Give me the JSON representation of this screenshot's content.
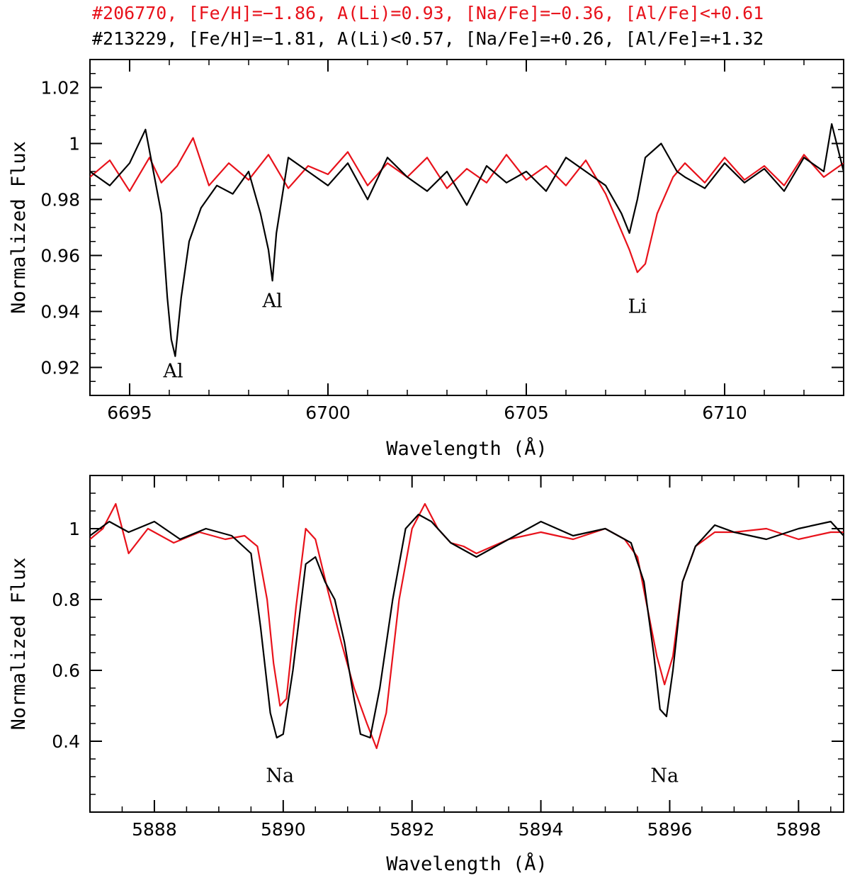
{
  "legend": {
    "red_label": "#206770, [Fe/H]=−1.86, A(Li)=0.93, [Na/Fe]=−0.36, [Al/Fe]<+0.61",
    "black_label": "#213229, [Fe/H]=−1.81, A(Li)<0.57, [Na/Fe]=+0.26, [Al/Fe]=+1.32"
  },
  "colors": {
    "red_star": "#e8121b",
    "black_star": "#000000"
  },
  "chart_data": [
    {
      "type": "line",
      "xlabel": "Wavelength (Å)",
      "ylabel": "Normalized Flux",
      "xlim": [
        6694,
        6713
      ],
      "ylim": [
        0.91,
        1.03
      ],
      "xticks": [
        6695,
        6700,
        6705,
        6710
      ],
      "xtick_labels": [
        "6695",
        "6700",
        "6705",
        "6710"
      ],
      "yticks": [
        0.92,
        0.94,
        0.96,
        0.98,
        1.0,
        1.02
      ],
      "ytick_labels": [
        "0.92",
        "0.94",
        "0.96",
        "0.98",
        "1",
        "1.02"
      ],
      "annotations": [
        {
          "text": "Al",
          "x": 6696.1,
          "y": 0.9165
        },
        {
          "text": "Al",
          "x": 6698.6,
          "y": 0.9415
        },
        {
          "text": "Li",
          "x": 6707.8,
          "y": 0.9395
        }
      ],
      "series": [
        {
          "name": "#206770",
          "color": "red",
          "x": [
            6694.0,
            6694.5,
            6695.0,
            6695.5,
            6695.8,
            6696.2,
            6696.6,
            6697.0,
            6697.5,
            6698.0,
            6698.5,
            6699.0,
            6699.5,
            6700.0,
            6700.5,
            6701.0,
            6701.5,
            6702.0,
            6702.5,
            6703.0,
            6703.5,
            6704.0,
            6704.5,
            6705.0,
            6705.5,
            6706.0,
            6706.5,
            6707.0,
            6707.3,
            6707.6,
            6707.8,
            6708.0,
            6708.3,
            6708.7,
            6709.0,
            6709.5,
            6710.0,
            6710.5,
            6711.0,
            6711.5,
            6712.0,
            6712.5,
            6713.0
          ],
          "values": [
            0.988,
            0.994,
            0.983,
            0.995,
            0.986,
            0.992,
            1.002,
            0.985,
            0.993,
            0.987,
            0.996,
            0.984,
            0.992,
            0.989,
            0.997,
            0.985,
            0.993,
            0.988,
            0.995,
            0.984,
            0.991,
            0.986,
            0.996,
            0.987,
            0.992,
            0.985,
            0.994,
            0.982,
            0.972,
            0.962,
            0.954,
            0.957,
            0.975,
            0.988,
            0.993,
            0.986,
            0.995,
            0.987,
            0.992,
            0.985,
            0.996,
            0.988,
            0.993
          ]
        },
        {
          "name": "#213229",
          "color": "black",
          "x": [
            6694.0,
            6694.5,
            6695.0,
            6695.4,
            6695.6,
            6695.8,
            6695.95,
            6696.05,
            6696.15,
            6696.3,
            6696.5,
            6696.8,
            6697.2,
            6697.6,
            6698.0,
            6698.3,
            6698.5,
            6698.6,
            6698.7,
            6699.0,
            6699.5,
            6700.0,
            6700.5,
            6701.0,
            6701.5,
            6702.0,
            6702.5,
            6703.0,
            6703.5,
            6704.0,
            6704.5,
            6705.0,
            6705.5,
            6706.0,
            6706.5,
            6707.0,
            6707.4,
            6707.6,
            6707.8,
            6708.0,
            6708.4,
            6708.8,
            6709.0,
            6709.5,
            6710.0,
            6710.5,
            6711.0,
            6711.5,
            6712.0,
            6712.5,
            6712.7,
            6713.0
          ],
          "values": [
            0.99,
            0.985,
            0.993,
            1.005,
            0.99,
            0.975,
            0.945,
            0.93,
            0.924,
            0.945,
            0.965,
            0.977,
            0.985,
            0.982,
            0.99,
            0.975,
            0.962,
            0.951,
            0.968,
            0.995,
            0.99,
            0.985,
            0.993,
            0.98,
            0.995,
            0.988,
            0.983,
            0.99,
            0.978,
            0.992,
            0.986,
            0.99,
            0.983,
            0.995,
            0.99,
            0.985,
            0.975,
            0.968,
            0.98,
            0.995,
            1.0,
            0.99,
            0.988,
            0.984,
            0.993,
            0.986,
            0.991,
            0.983,
            0.995,
            0.99,
            1.007,
            0.99
          ]
        }
      ]
    },
    {
      "type": "line",
      "xlabel": "Wavelength (Å)",
      "ylabel": "Normalized Flux",
      "xlim": [
        5887,
        5898.7
      ],
      "ylim": [
        0.2,
        1.15
      ],
      "xticks": [
        5888,
        5890,
        5892,
        5894,
        5896,
        5898
      ],
      "xtick_labels": [
        "5888",
        "5890",
        "5892",
        "5894",
        "5896",
        "5898"
      ],
      "yticks": [
        0.4,
        0.6,
        0.8,
        1.0
      ],
      "ytick_labels": [
        "0.4",
        "0.6",
        "0.8",
        "1"
      ],
      "annotations": [
        {
          "text": "Na",
          "x": 5889.95,
          "y": 0.285
        },
        {
          "text": "Na",
          "x": 5895.92,
          "y": 0.285
        }
      ],
      "series": [
        {
          "name": "#206770",
          "color": "red",
          "x": [
            5887.0,
            5887.2,
            5887.4,
            5887.6,
            5887.9,
            5888.3,
            5888.7,
            5889.1,
            5889.4,
            5889.6,
            5889.75,
            5889.85,
            5889.95,
            5890.05,
            5890.2,
            5890.35,
            5890.5,
            5890.7,
            5890.9,
            5891.1,
            5891.3,
            5891.45,
            5891.6,
            5891.8,
            5892.0,
            5892.2,
            5892.4,
            5892.6,
            5892.8,
            5893.0,
            5893.5,
            5894.0,
            5894.5,
            5895.0,
            5895.3,
            5895.5,
            5895.65,
            5895.8,
            5895.92,
            5896.05,
            5896.2,
            5896.4,
            5896.7,
            5897.0,
            5897.5,
            5898.0,
            5898.5,
            5898.7
          ],
          "values": [
            0.97,
            1.0,
            1.07,
            0.93,
            1.0,
            0.96,
            0.99,
            0.97,
            0.98,
            0.95,
            0.8,
            0.62,
            0.5,
            0.52,
            0.78,
            1.0,
            0.97,
            0.82,
            0.68,
            0.55,
            0.45,
            0.38,
            0.48,
            0.8,
            1.0,
            1.07,
            1.0,
            0.96,
            0.95,
            0.93,
            0.97,
            0.99,
            0.97,
            1.0,
            0.97,
            0.92,
            0.78,
            0.64,
            0.56,
            0.64,
            0.85,
            0.95,
            0.99,
            0.99,
            1.0,
            0.97,
            0.99,
            0.99
          ]
        },
        {
          "name": "#213229",
          "color": "black",
          "x": [
            5887.0,
            5887.3,
            5887.6,
            5888.0,
            5888.4,
            5888.8,
            5889.2,
            5889.5,
            5889.65,
            5889.8,
            5889.9,
            5890.0,
            5890.15,
            5890.35,
            5890.5,
            5890.65,
            5890.8,
            5890.95,
            5891.1,
            5891.2,
            5891.35,
            5891.5,
            5891.7,
            5891.9,
            5892.1,
            5892.3,
            5892.6,
            5893.0,
            5893.5,
            5894.0,
            5894.5,
            5895.0,
            5895.4,
            5895.6,
            5895.75,
            5895.85,
            5895.95,
            5896.05,
            5896.2,
            5896.4,
            5896.7,
            5897.0,
            5897.5,
            5898.0,
            5898.5,
            5898.7
          ],
          "values": [
            0.98,
            1.02,
            0.99,
            1.02,
            0.97,
            1.0,
            0.98,
            0.93,
            0.72,
            0.48,
            0.41,
            0.42,
            0.6,
            0.9,
            0.92,
            0.85,
            0.8,
            0.68,
            0.52,
            0.42,
            0.41,
            0.55,
            0.8,
            1.0,
            1.04,
            1.02,
            0.96,
            0.92,
            0.97,
            1.02,
            0.98,
            1.0,
            0.96,
            0.85,
            0.65,
            0.49,
            0.47,
            0.6,
            0.85,
            0.95,
            1.01,
            0.99,
            0.97,
            1.0,
            1.02,
            0.98
          ]
        }
      ]
    }
  ]
}
